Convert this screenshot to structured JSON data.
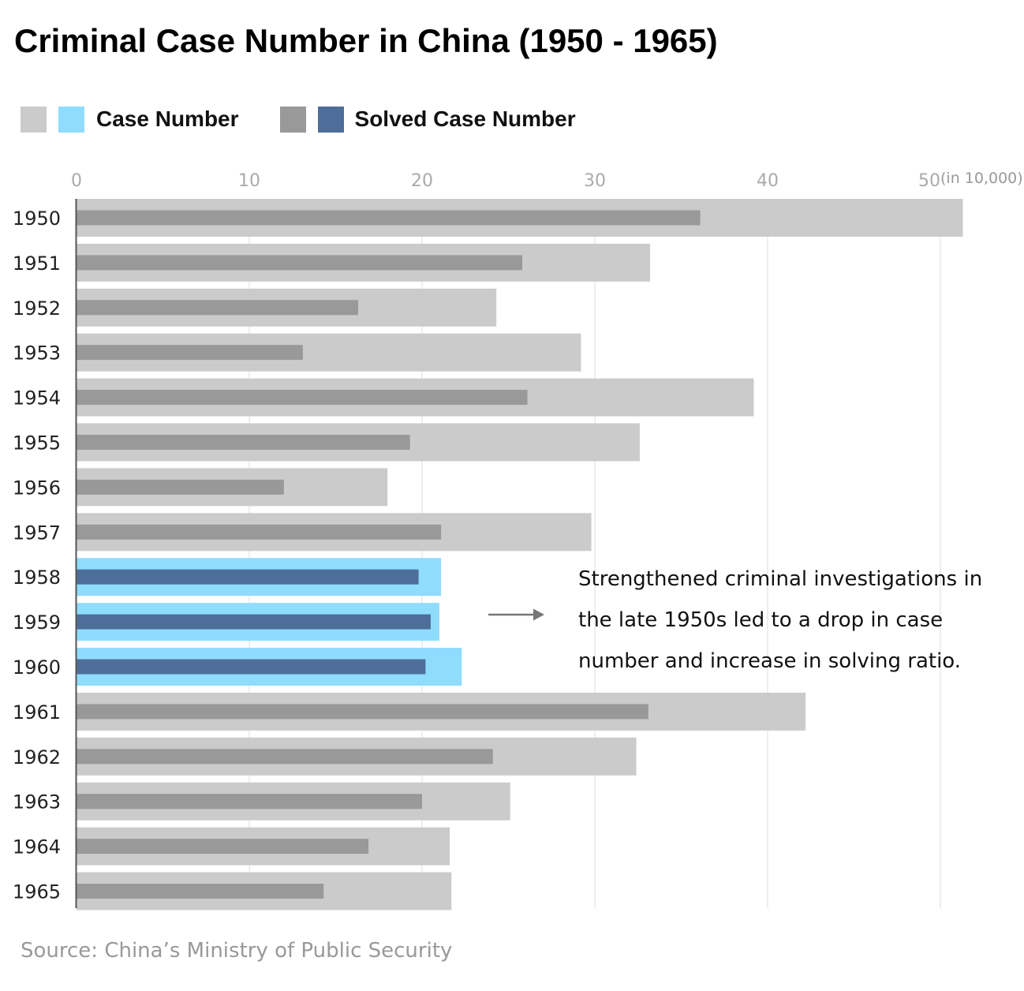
{
  "title": "Criminal Case Number in China (1950 - 1965)",
  "legend": {
    "case_label": "Case Number",
    "solved_label": "Solved Case Number"
  },
  "colors": {
    "case_normal": "#cbcbcb",
    "case_highlight": "#8fdcff",
    "solved_normal": "#999999",
    "solved_highlight": "#4e6e9a",
    "axis_line": "#555555",
    "grid": "#dddddd",
    "arrow": "#777777"
  },
  "annotation": {
    "lines": [
      "Strengthened criminal investigations in",
      "the late 1950s led to a drop in case",
      "number and increase in solving ratio."
    ]
  },
  "source": "Source: China’s Ministry of Public Security",
  "chart_data": {
    "type": "bar",
    "orientation": "horizontal",
    "title": "Criminal Case Number in China (1950 - 1965)",
    "unit_label": "(in 10,000)",
    "xlim": [
      0,
      50
    ],
    "xticks": [
      0,
      10,
      20,
      30,
      40,
      50
    ],
    "categories": [
      "1950",
      "1951",
      "1952",
      "1953",
      "1954",
      "1955",
      "1956",
      "1957",
      "1958",
      "1959",
      "1960",
      "1961",
      "1962",
      "1963",
      "1964",
      "1965"
    ],
    "highlight_categories": [
      "1958",
      "1959",
      "1960"
    ],
    "series": [
      {
        "name": "Case Number",
        "values": [
          51.3,
          33.2,
          24.3,
          29.2,
          39.2,
          32.6,
          18.0,
          29.8,
          21.1,
          21.0,
          22.3,
          42.2,
          32.4,
          25.1,
          21.6,
          21.7
        ]
      },
      {
        "name": "Solved Case Number",
        "values": [
          36.1,
          25.8,
          16.3,
          13.1,
          26.1,
          19.3,
          12.0,
          21.1,
          19.8,
          20.5,
          20.2,
          33.1,
          24.1,
          20.0,
          16.9,
          14.3
        ]
      }
    ]
  }
}
